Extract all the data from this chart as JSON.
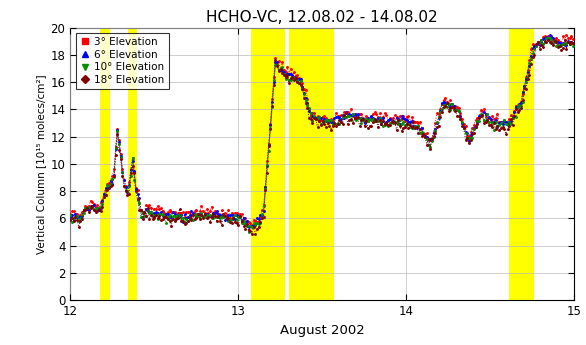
{
  "title": "HCHO-VC, 12.08.02 - 14.08.02",
  "xlabel": "August 2002",
  "ylabel": "Vertical Column [10¹⁵ molecs/cm²]",
  "ylim": [
    0,
    20
  ],
  "xlim": [
    12.0,
    15.0
  ],
  "xticks": [
    12,
    13,
    14,
    15
  ],
  "yticks": [
    0,
    2,
    4,
    6,
    8,
    10,
    12,
    14,
    16,
    18,
    20
  ],
  "colors": {
    "3deg": "#ff0000",
    "6deg": "#0000ff",
    "10deg": "#009000",
    "18deg": "#800000"
  },
  "legend": [
    {
      "label": "3° Elevation",
      "color": "#ff0000",
      "marker": "s"
    },
    {
      "label": "6° Elevation",
      "color": "#0000ff",
      "marker": "^"
    },
    {
      "label": "10° Elevation",
      "color": "#009000",
      "marker": "v"
    },
    {
      "label": "18° Elevation",
      "color": "#800000",
      "marker": "D"
    }
  ],
  "highlight_bands": [
    [
      12.175,
      12.235
    ],
    [
      12.345,
      12.395
    ],
    [
      13.075,
      13.28
    ],
    [
      13.3,
      13.57
    ],
    [
      14.61,
      14.76
    ]
  ],
  "background_color": "#ffffff",
  "grid_color": "#bbbbbb"
}
